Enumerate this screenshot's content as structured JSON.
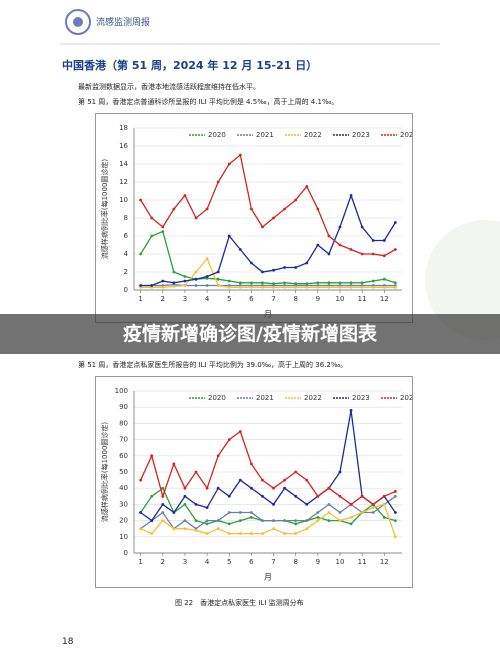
{
  "header": "流感监测周报",
  "title": "中国香港（第 51 周，2024 年 12 月 15-21 日）",
  "paragraphs": [
    "最新监测数据显示，香港本地流感活跃程度维持在低水平。",
    "第 51 周，香港定点普通科诊所呈报的 ILI 平均比例是 4.5‰，高于上周的 4.1‰。",
    "第 51 周，香港定点私家医生所报告的 ILI 平均比例为 39.0‰，高于上周的 36.2‰。"
  ],
  "banner": "疫情新增确诊图/疫情新增图表",
  "caption": "图 22　香港定点私家医生 ILI 监测周分布",
  "page_number": "18",
  "chart_data": [
    {
      "type": "line",
      "y_label": "流感样病例比率(每1000圆诊症)",
      "x_label": "月",
      "x": [
        1,
        1.5,
        2,
        2.5,
        3,
        3.5,
        4,
        4.5,
        5,
        5.5,
        6,
        6.5,
        7,
        7.5,
        8,
        8.5,
        9,
        9.5,
        10,
        10.5,
        11,
        11.5,
        12,
        12.5
      ],
      "xlim": [
        0.7,
        12.8
      ],
      "xticks": [
        1,
        2,
        3,
        4,
        5,
        6,
        7,
        8,
        9,
        10,
        11,
        12
      ],
      "ylim": [
        0,
        18
      ],
      "yticks": [
        0,
        2,
        4,
        6,
        8,
        10,
        12,
        14,
        16,
        18
      ],
      "grid": true,
      "series": [
        {
          "name": "2020",
          "color": "#2e9e3e",
          "values": [
            4,
            6,
            6.5,
            2,
            1.5,
            1.2,
            1.3,
            1.2,
            1,
            0.8,
            0.8,
            0.8,
            0.7,
            0.8,
            0.7,
            0.7,
            0.8,
            0.8,
            0.8,
            0.8,
            0.8,
            1,
            1.2,
            0.8
          ]
        },
        {
          "name": "2021",
          "color": "#6a7fa8",
          "values": [
            0.5,
            0.5,
            0.5,
            0.6,
            0.5,
            0.5,
            0.5,
            0.5,
            0.5,
            0.5,
            0.5,
            0.5,
            0.5,
            0.5,
            0.5,
            0.5,
            0.5,
            0.5,
            0.5,
            0.5,
            0.5,
            0.5,
            0.5,
            0.5
          ]
        },
        {
          "name": "2022",
          "color": "#f2c23a",
          "values": [
            0.3,
            0.3,
            0.3,
            0.4,
            0.5,
            2,
            3.5,
            0.5,
            0.3,
            0.3,
            0.3,
            0.3,
            0.3,
            0.3,
            0.3,
            0.3,
            0.3,
            0.3,
            0.3,
            0.3,
            0.3,
            0.3,
            0.3,
            0.3
          ]
        },
        {
          "name": "2023",
          "color": "#1c2a9c",
          "values": [
            0.5,
            0.5,
            1,
            0.8,
            1,
            1.2,
            1.5,
            2,
            6,
            4.5,
            3,
            2,
            2.2,
            2.5,
            2.5,
            3,
            5,
            4,
            7,
            10.5,
            7,
            5.5,
            5.5,
            7.5
          ]
        },
        {
          "name": "2024",
          "color": "#d62222",
          "values": [
            10,
            8,
            7,
            9,
            10.5,
            8,
            9,
            12,
            14,
            15,
            9,
            7,
            8,
            9,
            10,
            11.5,
            9,
            6,
            5,
            4.5,
            4,
            4,
            3.8,
            4.5
          ]
        }
      ]
    },
    {
      "type": "line",
      "y_label": "流感样病例比率(每1000圆诊症)",
      "x_label": "月",
      "x": [
        1,
        1.5,
        2,
        2.5,
        3,
        3.5,
        4,
        4.5,
        5,
        5.5,
        6,
        6.5,
        7,
        7.5,
        8,
        8.5,
        9,
        9.5,
        10,
        10.5,
        11,
        11.5,
        12,
        12.5
      ],
      "xlim": [
        0.7,
        12.8
      ],
      "xticks": [
        1,
        2,
        3,
        4,
        5,
        6,
        7,
        8,
        9,
        10,
        11,
        12
      ],
      "ylim": [
        0,
        100
      ],
      "yticks": [
        0,
        10,
        20,
        30,
        40,
        50,
        60,
        70,
        80,
        90,
        100
      ],
      "grid": true,
      "series": [
        {
          "name": "2020",
          "color": "#2e9e3e",
          "values": [
            25,
            35,
            40,
            25,
            30,
            20,
            18,
            20,
            18,
            20,
            22,
            20,
            20,
            20,
            18,
            20,
            22,
            20,
            20,
            18,
            25,
            30,
            22,
            20
          ]
        },
        {
          "name": "2021",
          "color": "#6a7fa8",
          "values": [
            15,
            20,
            25,
            15,
            20,
            15,
            20,
            20,
            25,
            25,
            25,
            20,
            20,
            20,
            20,
            20,
            25,
            30,
            25,
            30,
            25,
            25,
            30,
            35
          ]
        },
        {
          "name": "2022",
          "color": "#f2c23a",
          "values": [
            15,
            12,
            20,
            15,
            15,
            14,
            12,
            15,
            12,
            12,
            12,
            12,
            15,
            12,
            12,
            15,
            20,
            25,
            20,
            22,
            25,
            28,
            30,
            10
          ]
        },
        {
          "name": "2023",
          "color": "#1c2a9c",
          "values": [
            25,
            20,
            30,
            25,
            35,
            30,
            28,
            40,
            35,
            45,
            40,
            35,
            30,
            40,
            35,
            30,
            35,
            40,
            50,
            88,
            35,
            30,
            35,
            25
          ]
        },
        {
          "name": "2024",
          "color": "#d62222",
          "values": [
            45,
            60,
            35,
            55,
            40,
            50,
            40,
            60,
            70,
            75,
            55,
            45,
            40,
            45,
            50,
            45,
            35,
            40,
            35,
            30,
            35,
            30,
            35,
            38
          ]
        }
      ]
    }
  ]
}
